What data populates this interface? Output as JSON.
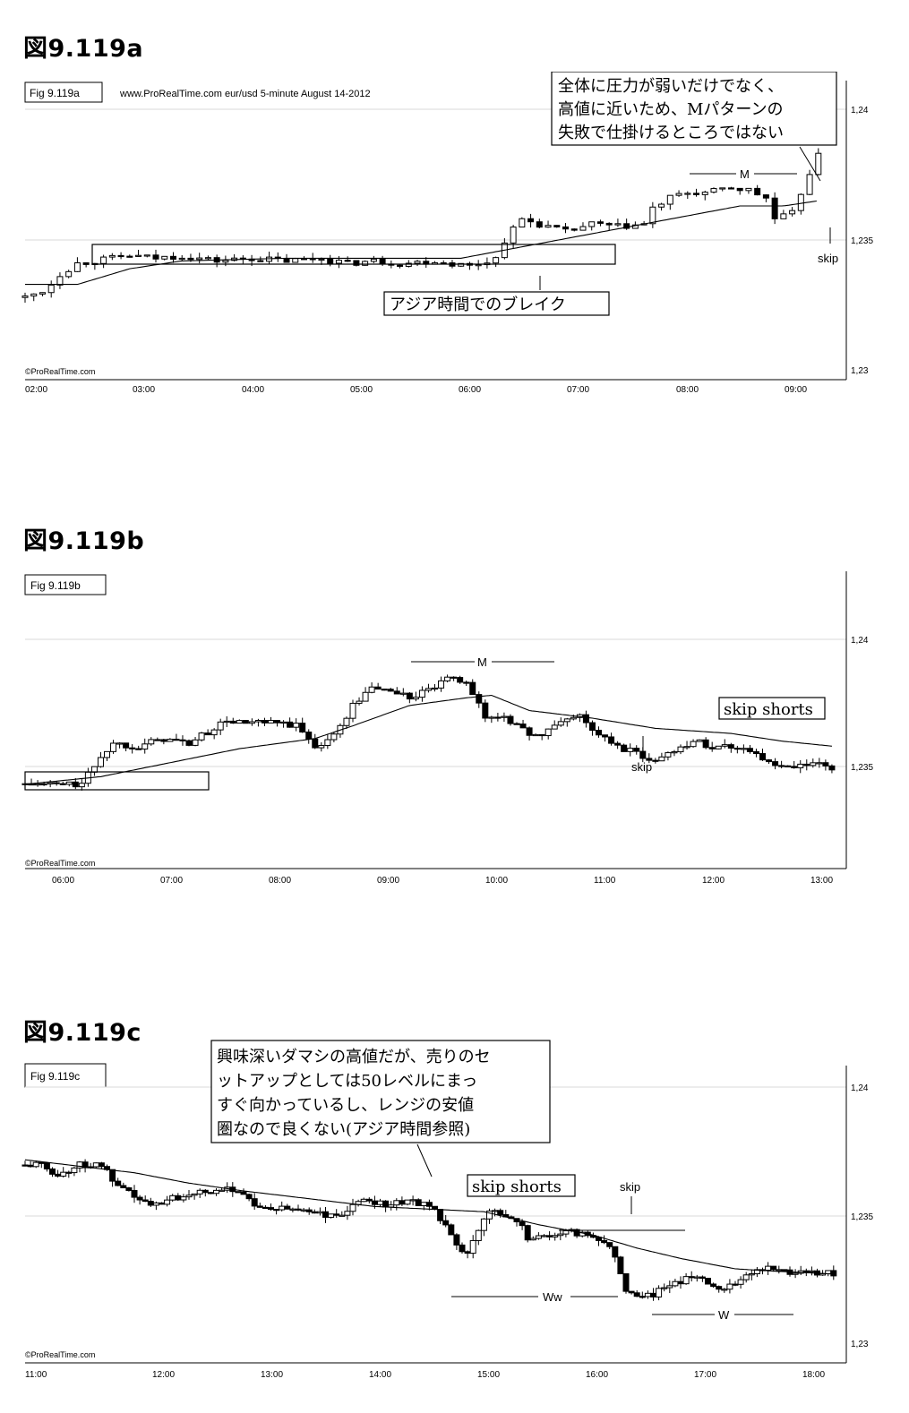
{
  "figures": [
    {
      "heading": "図9.119a",
      "figbox": "Fig 9.119a",
      "header_text": "www.ProRealTime.com    eur/usd  5-minute  August 14-2012",
      "credit": "©ProRealTime.com",
      "ytick_labels": [
        "1,24",
        "1,235",
        "1,23"
      ],
      "xtick_labels": [
        "02:00",
        "03:00",
        "04:00",
        "05:00",
        "06:00",
        "07:00",
        "08:00",
        "09:00"
      ],
      "annotations": {
        "callout_lines": [
          "全体に圧力が弱いだけでなく、",
          "高値に近いため、Mパターンの",
          "失敗で仕掛けるところではない"
        ],
        "break_label": "アジア時間でのブレイク",
        "m_label": "M",
        "skip_label": "skip"
      }
    },
    {
      "heading": "図9.119b",
      "figbox": "Fig 9.119b",
      "credit": "©ProRealTime.com",
      "ytick_labels": [
        "1,24",
        "1,235"
      ],
      "xtick_labels": [
        "06:00",
        "07:00",
        "08:00",
        "09:00",
        "10:00",
        "11:00",
        "12:00",
        "13:00"
      ],
      "annotations": {
        "m_label": "M",
        "skip_label": "skip",
        "skip_shorts_label": "skip shorts"
      }
    },
    {
      "heading": "図9.119c",
      "figbox": "Fig 9.119c",
      "credit": "©ProRealTime.com",
      "ytick_labels": [
        "1,24",
        "1,235",
        "1,23"
      ],
      "xtick_labels": [
        "11:00",
        "12:00",
        "13:00",
        "14:00",
        "15:00",
        "16:00",
        "17:00",
        "18:00"
      ],
      "annotations": {
        "callout_lines": [
          "興味深いダマシの高値だが、売りのセ",
          "ットアップとしては50レベルにまっ",
          "すぐ向かっているし、レンジの安値",
          "圏なので良くない(アジア時間参照)"
        ],
        "skip_shorts_label": "skip shorts",
        "skip_label": "skip",
        "ww_label": "Ww",
        "w_label": "W"
      }
    }
  ],
  "chart_data": [
    {
      "type": "candlestick",
      "title": "eur/usd 5-minute August 14-2012",
      "x_range": [
        "02:00",
        "09:25"
      ],
      "ylim": [
        1.2298,
        1.2415
      ],
      "yticks": [
        1.23,
        1.235,
        1.24
      ],
      "series": [
        {
          "name": "price",
          "ohlc_path": [
            [
              0,
              1.2328
            ],
            [
              12,
              1.2331
            ],
            [
              20,
              1.2337
            ],
            [
              30,
              1.2341
            ],
            [
              40,
              1.2342
            ],
            [
              50,
              1.2343
            ],
            [
              60,
              1.2344
            ],
            [
              75,
              1.2343
            ],
            [
              90,
              1.2344
            ],
            [
              110,
              1.2342
            ],
            [
              130,
              1.2343
            ],
            [
              150,
              1.2342
            ],
            [
              170,
              1.2343
            ],
            [
              185,
              1.2341
            ],
            [
              200,
              1.2342
            ],
            [
              215,
              1.2341
            ],
            [
              235,
              1.2342
            ],
            [
              255,
              1.234
            ],
            [
              270,
              1.2343
            ],
            [
              275,
              1.235
            ],
            [
              285,
              1.2358
            ],
            [
              295,
              1.2356
            ],
            [
              310,
              1.2353
            ],
            [
              325,
              1.2356
            ],
            [
              340,
              1.2355
            ],
            [
              355,
              1.2356
            ],
            [
              360,
              1.2362
            ],
            [
              370,
              1.2366
            ],
            [
              380,
              1.2368
            ],
            [
              392,
              1.2368
            ],
            [
              405,
              1.237
            ],
            [
              415,
              1.2369
            ],
            [
              425,
              1.2366
            ],
            [
              430,
              1.2358
            ],
            [
              440,
              1.236
            ],
            [
              445,
              1.2368
            ],
            [
              450,
              1.2376
            ],
            [
              455,
              1.2382
            ]
          ]
        },
        {
          "name": "ema",
          "path": [
            [
              0,
              1.2333
            ],
            [
              30,
              1.2333
            ],
            [
              60,
              1.2339
            ],
            [
              90,
              1.2342
            ],
            [
              150,
              1.2343
            ],
            [
              250,
              1.2343
            ],
            [
              290,
              1.2348
            ],
            [
              330,
              1.2353
            ],
            [
              370,
              1.2358
            ],
            [
              410,
              1.2363
            ],
            [
              435,
              1.2363
            ],
            [
              455,
              1.2365
            ]
          ]
        }
      ]
    },
    {
      "type": "candlestick",
      "x_range": [
        "05:50",
        "13:15"
      ],
      "ylim": [
        1.2305,
        1.2425
      ],
      "yticks": [
        1.235,
        1.24
      ],
      "series": [
        {
          "name": "price",
          "ohlc_path": [
            [
              0,
              1.2343
            ],
            [
              25,
              1.2343
            ],
            [
              45,
              1.2343
            ],
            [
              60,
              1.2354
            ],
            [
              70,
              1.2359
            ],
            [
              90,
              1.2358
            ],
            [
              110,
              1.2361
            ],
            [
              130,
              1.2359
            ],
            [
              160,
              1.2368
            ],
            [
              175,
              1.2367
            ],
            [
              200,
              1.2367
            ],
            [
              215,
              1.2366
            ],
            [
              230,
              1.2358
            ],
            [
              245,
              1.2362
            ],
            [
              260,
              1.2374
            ],
            [
              275,
              1.2381
            ],
            [
              290,
              1.238
            ],
            [
              305,
              1.2377
            ],
            [
              320,
              1.238
            ],
            [
              335,
              1.2384
            ],
            [
              350,
              1.2384
            ],
            [
              365,
              1.2369
            ],
            [
              380,
              1.237
            ],
            [
              395,
              1.2364
            ],
            [
              410,
              1.2362
            ],
            [
              425,
              1.2368
            ],
            [
              440,
              1.237
            ],
            [
              455,
              1.2362
            ],
            [
              470,
              1.2358
            ],
            [
              485,
              1.2355
            ],
            [
              500,
              1.2352
            ],
            [
              515,
              1.2357
            ],
            [
              530,
              1.236
            ],
            [
              545,
              1.2358
            ],
            [
              560,
              1.2358
            ],
            [
              575,
              1.2357
            ],
            [
              590,
              1.2351
            ],
            [
              605,
              1.2349
            ],
            [
              625,
              1.2351
            ],
            [
              640,
              1.2349
            ]
          ]
        },
        {
          "name": "ema",
          "path": [
            [
              0,
              1.2343
            ],
            [
              60,
              1.2346
            ],
            [
              110,
              1.2351
            ],
            [
              170,
              1.2357
            ],
            [
              230,
              1.2361
            ],
            [
              260,
              1.2366
            ],
            [
              305,
              1.2374
            ],
            [
              350,
              1.2377
            ],
            [
              370,
              1.2378
            ],
            [
              400,
              1.2372
            ],
            [
              450,
              1.2369
            ],
            [
              500,
              1.2365
            ],
            [
              560,
              1.2363
            ],
            [
              600,
              1.236
            ],
            [
              640,
              1.2358
            ]
          ]
        }
      ]
    },
    {
      "type": "candlestick",
      "x_range": [
        "11:00",
        "18:25"
      ],
      "ylim": [
        1.2295,
        1.242
      ],
      "yticks": [
        1.23,
        1.235,
        1.24
      ],
      "series": [
        {
          "name": "price",
          "ohlc_path": [
            [
              0,
              1.237
            ],
            [
              15,
              1.237
            ],
            [
              30,
              1.2366
            ],
            [
              50,
              1.237
            ],
            [
              70,
              1.237
            ],
            [
              85,
              1.2361
            ],
            [
              100,
              1.2358
            ],
            [
              115,
              1.2354
            ],
            [
              130,
              1.2357
            ],
            [
              145,
              1.2358
            ],
            [
              160,
              1.2361
            ],
            [
              175,
              1.2359
            ],
            [
              190,
              1.2361
            ],
            [
              200,
              1.2359
            ],
            [
              215,
              1.2353
            ],
            [
              230,
              1.2353
            ],
            [
              250,
              1.2353
            ],
            [
              265,
              1.2352
            ],
            [
              280,
              1.235
            ],
            [
              295,
              1.2352
            ],
            [
              310,
              1.2357
            ],
            [
              330,
              1.2355
            ],
            [
              350,
              1.2356
            ],
            [
              370,
              1.2355
            ],
            [
              385,
              1.2346
            ],
            [
              395,
              1.2338
            ],
            [
              405,
              1.2336
            ],
            [
              415,
              1.2344
            ],
            [
              425,
              1.2353
            ],
            [
              435,
              1.2352
            ],
            [
              445,
              1.2349
            ],
            [
              455,
              1.2347
            ],
            [
              460,
              1.2341
            ],
            [
              475,
              1.2343
            ],
            [
              485,
              1.2343
            ],
            [
              500,
              1.2344
            ],
            [
              515,
              1.2343
            ],
            [
              530,
              1.2341
            ],
            [
              540,
              1.2335
            ],
            [
              550,
              1.2322
            ],
            [
              560,
              1.232
            ],
            [
              575,
              1.232
            ],
            [
              590,
              1.2324
            ],
            [
              605,
              1.2326
            ],
            [
              620,
              1.2327
            ],
            [
              635,
              1.2322
            ],
            [
              650,
              1.2325
            ],
            [
              665,
              1.2329
            ],
            [
              680,
              1.233
            ],
            [
              700,
              1.2329
            ],
            [
              720,
              1.2329
            ],
            [
              740,
              1.2328
            ]
          ]
        },
        {
          "name": "ema",
          "path": [
            [
              0,
              1.2372
            ],
            [
              40,
              1.237
            ],
            [
              100,
              1.2367
            ],
            [
              150,
              1.2363
            ],
            [
              200,
              1.236
            ],
            [
              260,
              1.2357
            ],
            [
              320,
              1.2354
            ],
            [
              370,
              1.2353
            ],
            [
              420,
              1.2352
            ],
            [
              470,
              1.2347
            ],
            [
              520,
              1.2343
            ],
            [
              560,
              1.2338
            ],
            [
              600,
              1.2334
            ],
            [
              650,
              1.233
            ],
            [
              690,
              1.2329
            ],
            [
              740,
              1.2328
            ]
          ]
        }
      ]
    }
  ]
}
